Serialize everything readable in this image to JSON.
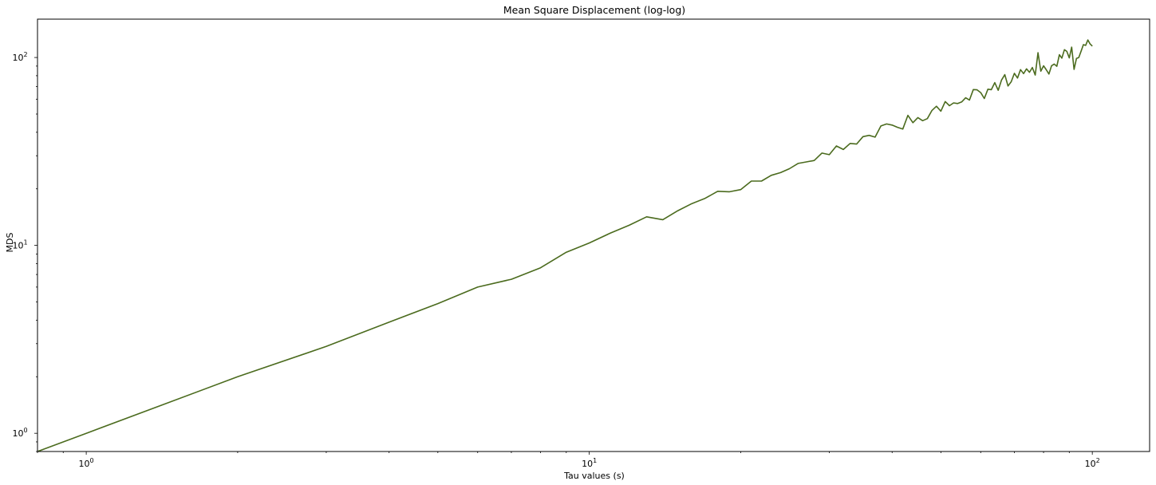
{
  "chart_data": {
    "type": "line",
    "title": "Mean Square Displacement (log-log)",
    "xlabel": "Tau values (s)",
    "ylabel": "MDS",
    "xscale": "log",
    "yscale": "log",
    "xlim": [
      0.8,
      130
    ],
    "ylim": [
      0.8,
      160
    ],
    "grid": false,
    "line_color": "#4b6b1e",
    "x_major_ticks": [
      1,
      10,
      100
    ],
    "x_major_tick_labels": [
      {
        "base": "10",
        "exp": "0"
      },
      {
        "base": "10",
        "exp": "1"
      },
      {
        "base": "10",
        "exp": "2"
      }
    ],
    "y_major_ticks": [
      1,
      10,
      100
    ],
    "y_major_tick_labels": [
      {
        "base": "10",
        "exp": "0"
      },
      {
        "base": "10",
        "exp": "1"
      },
      {
        "base": "10",
        "exp": "2"
      }
    ],
    "series": [
      {
        "x": [
          0.8,
          1,
          2,
          3,
          4,
          5,
          6,
          7,
          8,
          9,
          10,
          11,
          12,
          13,
          14,
          15,
          16,
          17,
          18,
          19,
          20,
          21,
          22,
          23,
          24,
          25,
          26,
          27,
          28,
          29,
          30,
          31,
          32,
          33,
          34,
          35,
          36,
          37,
          38,
          39,
          40,
          41,
          42,
          43,
          44,
          45,
          46,
          47,
          48,
          49,
          50,
          51,
          52,
          53,
          54,
          55,
          56,
          57,
          58,
          59,
          60,
          61,
          62,
          63,
          64,
          65,
          66,
          67,
          68,
          69,
          70,
          71,
          72,
          73,
          74,
          75,
          76,
          77,
          78,
          79,
          80,
          81,
          82,
          83,
          84,
          85,
          86,
          87,
          88,
          89,
          90,
          91,
          92,
          93,
          94,
          95,
          96,
          97,
          98,
          99,
          100
        ],
        "y": [
          0.8,
          1.0,
          2.0,
          2.9,
          3.9,
          4.9,
          6.0,
          6.6,
          7.6,
          9.2,
          10.3,
          11.6,
          12.8,
          14.2,
          13.7,
          15.3,
          16.7,
          17.8,
          19.4,
          19.3,
          19.8,
          22.0,
          22.0,
          23.6,
          24.4,
          25.6,
          27.3,
          27.8,
          28.3,
          31.0,
          30.4,
          33.8,
          32.4,
          34.9,
          34.6,
          37.9,
          38.5,
          37.7,
          43.2,
          44.3,
          43.7,
          42.5,
          41.6,
          49.2,
          45.0,
          47.9,
          46.1,
          47.3,
          52.3,
          55.0,
          51.8,
          58.3,
          55.4,
          57.3,
          56.9,
          58.0,
          61.0,
          59.4,
          67.5,
          67.3,
          65.0,
          60.5,
          67.8,
          67.4,
          73.5,
          66.9,
          75.9,
          81.0,
          70.5,
          74.3,
          82.4,
          77.8,
          86.2,
          82.1,
          87.0,
          83.4,
          88.5,
          80.6,
          106.0,
          84.6,
          90.3,
          86.0,
          81.7,
          90.4,
          92.3,
          89.8,
          103.5,
          99.2,
          110.0,
          107.8,
          99.5,
          113.5,
          86.4,
          98.8,
          100.0,
          108.0,
          117.0,
          116.0,
          124.0,
          118.0,
          115.0
        ]
      }
    ]
  }
}
